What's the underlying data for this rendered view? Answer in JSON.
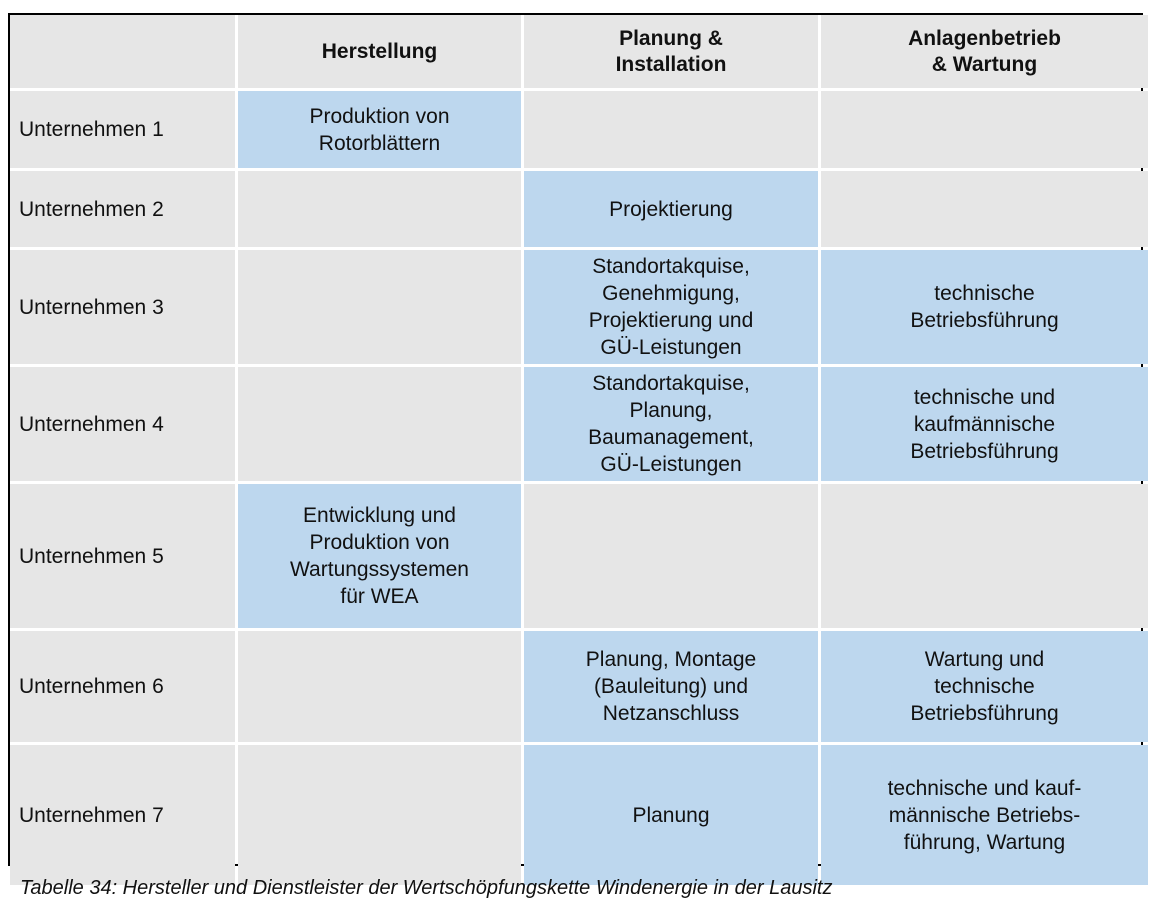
{
  "table": {
    "headers": [
      "",
      "Herstellung",
      "Planung &\nInstallation",
      "Anlagenbetrieb\n& Wartung"
    ],
    "rows": [
      {
        "label": "Unternehmen 1",
        "cells": [
          "Produktion von\nRotorblättern",
          "",
          ""
        ]
      },
      {
        "label": "Unternehmen 2",
        "cells": [
          "",
          "Projektierung",
          ""
        ]
      },
      {
        "label": "Unternehmen 3",
        "cells": [
          "",
          "Standortakquise,\nGenehmigung,\nProjektierung und\nGÜ-Leistungen",
          "technische\nBetriebsführung"
        ]
      },
      {
        "label": "Unternehmen 4",
        "cells": [
          "",
          "Standortakquise,\nPlanung,\nBaumanagement,\nGÜ-Leistungen",
          "technische und\nkaufmännische\nBetriebsführung"
        ]
      },
      {
        "label": "Unternehmen 5",
        "cells": [
          "Entwicklung und\nProduktion von\nWartungssystemen\nfür WEA",
          "",
          ""
        ]
      },
      {
        "label": "Unternehmen 6",
        "cells": [
          "",
          "Planung, Montage\n(Bauleitung) und\nNetzanschluss",
          "Wartung und\ntechnische\nBetriebsführung"
        ]
      },
      {
        "label": "Unternehmen 7",
        "cells": [
          "",
          "Planung",
          "technische und kauf-\nmännische Betriebs-\nführung, Wartung"
        ]
      }
    ]
  },
  "caption": "Tabelle 34: Hersteller und Dienstleister der Wertschöpfungskette Windenergie in der Lausitz",
  "colors": {
    "empty": "#e6e6e6",
    "filled": "#bdd7ee"
  }
}
